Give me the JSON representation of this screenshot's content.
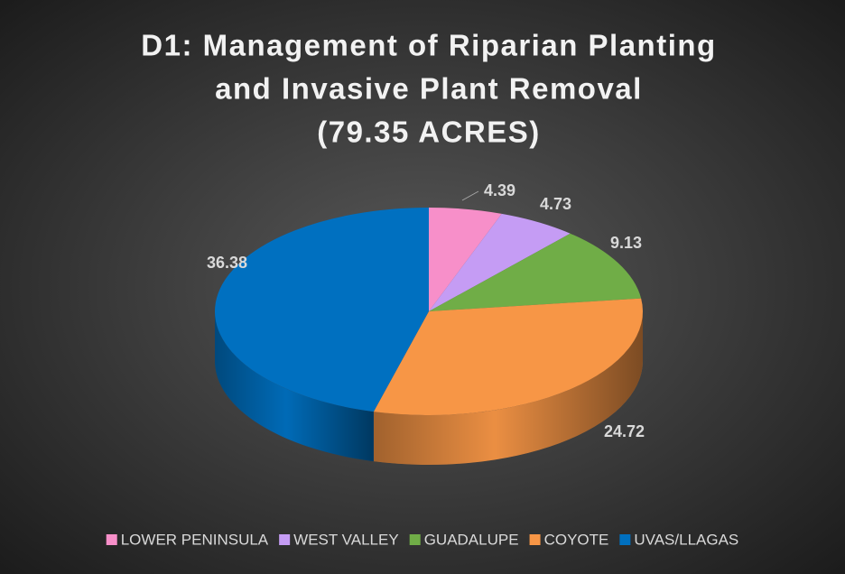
{
  "chart_data": {
    "type": "pie3d",
    "title_lines": [
      "D1: Management of Riparian Planting",
      "and Invasive Plant Removal",
      "(79.35 ACRES)"
    ],
    "categories": [
      "LOWER PENINSULA",
      "WEST VALLEY",
      "GUADALUPE",
      "COYOTE",
      "UVAS/LLAGAS"
    ],
    "values": [
      4.39,
      4.73,
      9.13,
      24.72,
      36.38
    ],
    "colors": [
      "#f78fc9",
      "#c59cf4",
      "#70ad47",
      "#f79646",
      "#0070c0"
    ],
    "legend": "bottom"
  }
}
